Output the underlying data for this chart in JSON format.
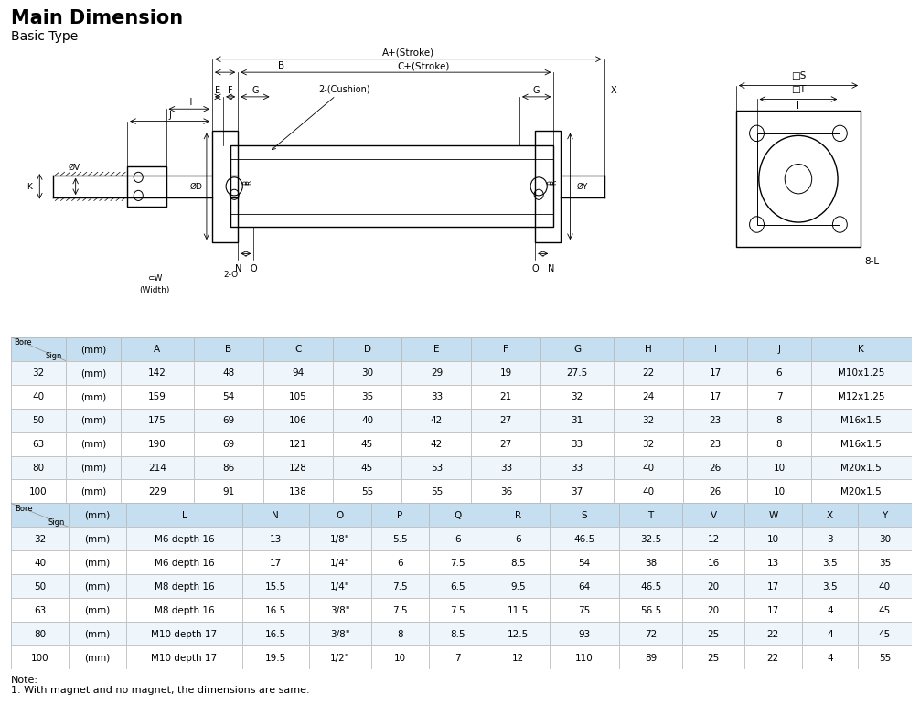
{
  "title": "Main Dimension",
  "subtitle": "Basic Type",
  "note": "Note:\n1. With magnet and no magnet, the dimensions are same.",
  "header1": [
    "",
    "A",
    "B",
    "C",
    "D",
    "E",
    "F",
    "G",
    "H",
    "I",
    "J",
    "K"
  ],
  "header2_col1_labels": [
    "L",
    "N",
    "O",
    "P",
    "Q",
    "R",
    "S",
    "T",
    "V",
    "W",
    "X",
    "Y"
  ],
  "table1_data": [
    [
      "32",
      "(mm)",
      "142",
      "48",
      "94",
      "30",
      "29",
      "19",
      "27.5",
      "22",
      "17",
      "6",
      "M10x1.25"
    ],
    [
      "40",
      "(mm)",
      "159",
      "54",
      "105",
      "35",
      "33",
      "21",
      "32",
      "24",
      "17",
      "7",
      "M12x1.25"
    ],
    [
      "50",
      "(mm)",
      "175",
      "69",
      "106",
      "40",
      "42",
      "27",
      "31",
      "32",
      "23",
      "8",
      "M16x1.5"
    ],
    [
      "63",
      "(mm)",
      "190",
      "69",
      "121",
      "45",
      "42",
      "27",
      "33",
      "32",
      "23",
      "8",
      "M16x1.5"
    ],
    [
      "80",
      "(mm)",
      "214",
      "86",
      "128",
      "45",
      "53",
      "33",
      "33",
      "40",
      "26",
      "10",
      "M20x1.5"
    ],
    [
      "100",
      "(mm)",
      "229",
      "91",
      "138",
      "55",
      "55",
      "36",
      "37",
      "40",
      "26",
      "10",
      "M20x1.5"
    ]
  ],
  "table2_data": [
    [
      "32",
      "(mm)",
      "M6 depth 16",
      "13",
      "1/8\"",
      "5.5",
      "6",
      "6",
      "46.5",
      "32.5",
      "12",
      "10",
      "3",
      "30"
    ],
    [
      "40",
      "(mm)",
      "M6 depth 16",
      "17",
      "1/4\"",
      "6",
      "7.5",
      "8.5",
      "54",
      "38",
      "16",
      "13",
      "3.5",
      "35"
    ],
    [
      "50",
      "(mm)",
      "M8 depth 16",
      "15.5",
      "1/4\"",
      "7.5",
      "6.5",
      "9.5",
      "64",
      "46.5",
      "20",
      "17",
      "3.5",
      "40"
    ],
    [
      "63",
      "(mm)",
      "M8 depth 16",
      "16.5",
      "3/8\"",
      "7.5",
      "7.5",
      "11.5",
      "75",
      "56.5",
      "20",
      "17",
      "4",
      "45"
    ],
    [
      "80",
      "(mm)",
      "M10 depth 17",
      "16.5",
      "3/8\"",
      "8",
      "8.5",
      "12.5",
      "93",
      "72",
      "25",
      "22",
      "4",
      "45"
    ],
    [
      "100",
      "(mm)",
      "M10 depth 17",
      "19.5",
      "1/2\"",
      "10",
      "7",
      "12",
      "110",
      "89",
      "25",
      "22",
      "4",
      "55"
    ]
  ],
  "header_bg": "#c5dff0",
  "row_bg_even": "#ffffff",
  "row_bg_odd": "#eef5fb",
  "grid_color": "#aaaaaa"
}
